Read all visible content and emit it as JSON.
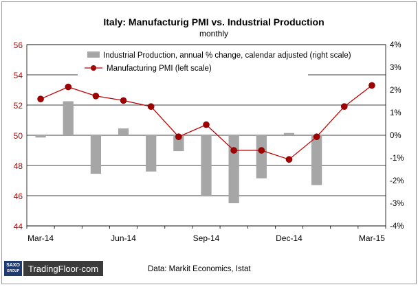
{
  "chart_data": {
    "type": "bar+line",
    "title": "Italy: Manufacturig PMI vs. Industrial Production",
    "subtitle": "monthly",
    "categories": [
      "Mar-14",
      "Apr-14",
      "May-14",
      "Jun-14",
      "Jul-14",
      "Aug-14",
      "Sep-14",
      "Oct-14",
      "Nov-14",
      "Dec-14",
      "Jan-15",
      "Feb-15",
      "Mar-15"
    ],
    "x_tick_labels": [
      "Mar-14",
      "Jun-14",
      "Sep-14",
      "Dec-14",
      "Mar-15"
    ],
    "left_axis": {
      "range": [
        44,
        56
      ],
      "ticks": [
        "44",
        "46",
        "48",
        "50",
        "52",
        "54",
        "56"
      ]
    },
    "right_axis": {
      "range": [
        -4,
        4
      ],
      "ticks": [
        "-4%",
        "-3%",
        "-2%",
        "-1%",
        "0%",
        "1%",
        "2%",
        "3%",
        "4%"
      ]
    },
    "grid": true,
    "legend_position": "top",
    "series": [
      {
        "name": "Industrial Production, annual % change, calendar adjusted (right scale)",
        "kind": "bar",
        "axis": "right",
        "color": "#a6a6a6",
        "values": [
          -0.1,
          1.5,
          -1.7,
          0.3,
          -1.6,
          -0.7,
          -2.7,
          -3.0,
          -1.9,
          0.1,
          -2.2,
          null,
          null
        ]
      },
      {
        "name": "Manufacturing PMI (left scale)",
        "kind": "line",
        "axis": "left",
        "color": "#c00000",
        "values": [
          52.4,
          53.2,
          52.6,
          52.3,
          51.9,
          49.9,
          50.7,
          49.0,
          49.0,
          48.4,
          49.9,
          51.9,
          53.3
        ]
      }
    ]
  },
  "footer": {
    "brand_box": "SAXO GROUP",
    "brand_name": "TradingFloor·com",
    "source": "Data: Markit Economics,  Istat"
  }
}
